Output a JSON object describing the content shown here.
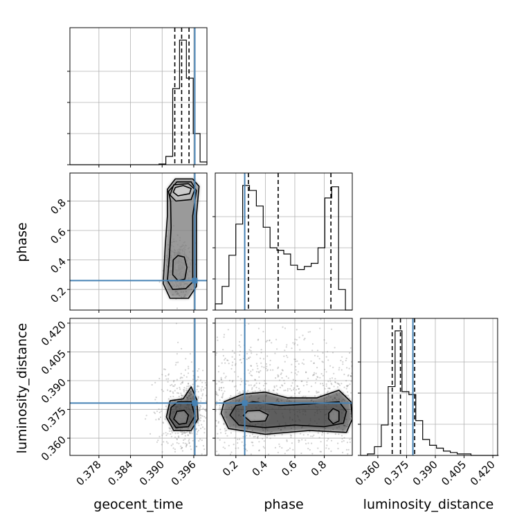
{
  "chart_data": {
    "type": "corner",
    "parameters": [
      "geocent_time",
      "phase",
      "luminosity_distance"
    ],
    "axis_labels": {
      "geocent_time": "geocent_time",
      "phase": "phase",
      "luminosity_distance": "luminosity_distance"
    },
    "ranges": {
      "geocent_time": [
        0.3725,
        0.3985
      ],
      "phase": [
        0.06,
        0.99
      ],
      "luminosity_distance": [
        0.351,
        0.4225
      ]
    },
    "ticks": {
      "geocent_time": [
        "0.378",
        "0.384",
        "0.390",
        "0.396"
      ],
      "phase": [
        "0.2",
        "0.4",
        "0.6",
        "0.8"
      ],
      "luminosity_distance": [
        "0.360",
        "0.375",
        "0.390",
        "0.405",
        "0.420"
      ]
    },
    "truths": {
      "geocent_time": 0.3962,
      "phase": 0.26,
      "luminosity_distance": 0.3783
    },
    "quantiles": {
      "geocent_time": [
        0.3924,
        0.3937,
        0.3951
      ],
      "phase": [
        0.285,
        0.487,
        0.845
      ],
      "luminosity_distance": [
        0.3675,
        0.3718,
        0.3792
      ]
    },
    "histograms": {
      "geocent_time": {
        "edges": [
          0.3725,
          0.3738,
          0.3751,
          0.3764,
          0.3777,
          0.379,
          0.3803,
          0.3816,
          0.3829,
          0.3842,
          0.3855,
          0.3868,
          0.3881,
          0.3894,
          0.3907,
          0.392,
          0.3933,
          0.3946,
          0.3959,
          0.3972,
          0.3985
        ],
        "counts": [
          0,
          0,
          0,
          0,
          0,
          0,
          0,
          0,
          0,
          0,
          0,
          0,
          0,
          1,
          12,
          110,
          180,
          125,
          45,
          4
        ]
      },
      "phase": {
        "edges": [
          0.06,
          0.1065,
          0.153,
          0.1995,
          0.246,
          0.2925,
          0.339,
          0.3855,
          0.432,
          0.4785,
          0.525,
          0.5715,
          0.618,
          0.6645,
          0.711,
          0.7575,
          0.804,
          0.8505,
          0.897,
          0.9435,
          0.99
        ],
        "counts": [
          10,
          38,
          88,
          138,
          200,
          192,
          167,
          133,
          100,
          96,
          90,
          72,
          65,
          70,
          75,
          100,
          180,
          198,
          33,
          0
        ]
      },
      "luminosity_distance": {
        "edges": [
          0.351,
          0.3546,
          0.3582,
          0.3618,
          0.3654,
          0.369,
          0.3726,
          0.3762,
          0.3798,
          0.3834,
          0.387,
          0.3906,
          0.3942,
          0.3978,
          0.4014,
          0.405,
          0.4086,
          0.4122,
          0.4158,
          0.4194,
          0.423
        ],
        "counts": [
          0,
          2,
          12,
          42,
          95,
          172,
          88,
          84,
          48,
          22,
          14,
          10,
          6,
          4,
          2,
          2,
          0,
          0,
          0,
          0
        ]
      }
    },
    "contours_2d": {
      "phase_vs_geocent_time": {
        "levels": [
          [
            [
              0.3921,
              0.86
            ],
            [
              0.393,
              0.835
            ],
            [
              0.3952,
              0.85
            ],
            [
              0.3955,
              0.885
            ],
            [
              0.394,
              0.905
            ],
            [
              0.3925,
              0.892
            ]
          ],
          [
            [
              0.3915,
              0.84
            ],
            [
              0.3926,
              0.8
            ],
            [
              0.3955,
              0.81
            ],
            [
              0.3962,
              0.88
            ],
            [
              0.395,
              0.918
            ],
            [
              0.3922,
              0.91
            ]
          ],
          [
            [
              0.3912,
              0.865
            ],
            [
              0.3916,
              0.8
            ],
            [
              0.3917,
              0.62
            ],
            [
              0.3914,
              0.43
            ],
            [
              0.391,
              0.26
            ],
            [
              0.392,
              0.2
            ],
            [
              0.3945,
              0.205
            ],
            [
              0.3958,
              0.25
            ],
            [
              0.3958,
              0.7
            ],
            [
              0.3965,
              0.87
            ],
            [
              0.3955,
              0.93
            ],
            [
              0.3928,
              0.93
            ]
          ],
          [
            [
              0.391,
              0.88
            ],
            [
              0.391,
              0.7
            ],
            [
              0.3906,
              0.5
            ],
            [
              0.3902,
              0.24
            ],
            [
              0.3915,
              0.14
            ],
            [
              0.395,
              0.14
            ],
            [
              0.3965,
              0.22
            ],
            [
              0.3965,
              0.7
            ],
            [
              0.397,
              0.9
            ],
            [
              0.3958,
              0.95
            ],
            [
              0.3925,
              0.95
            ]
          ],
          [
            [
              0.392,
              0.3
            ],
            [
              0.393,
              0.26
            ],
            [
              0.3943,
              0.27
            ],
            [
              0.3947,
              0.35
            ],
            [
              0.3942,
              0.42
            ],
            [
              0.393,
              0.43
            ],
            [
              0.3921,
              0.4
            ]
          ]
        ]
      },
      "luminosity_distance_vs_geocent_time": {
        "levels": [
          [
            [
              0.3922,
              0.37
            ],
            [
              0.3932,
              0.3672
            ],
            [
              0.3946,
              0.3678
            ],
            [
              0.395,
              0.372
            ],
            [
              0.3942,
              0.3745
            ],
            [
              0.3928,
              0.374
            ]
          ],
          [
            [
              0.3914,
              0.3705
            ],
            [
              0.3926,
              0.3655
            ],
            [
              0.395,
              0.366
            ],
            [
              0.3962,
              0.3715
            ],
            [
              0.3955,
              0.379
            ],
            [
              0.393,
              0.379
            ],
            [
              0.3917,
              0.376
            ]
          ],
          [
            [
              0.3908,
              0.371
            ],
            [
              0.3922,
              0.364
            ],
            [
              0.3955,
              0.364
            ],
            [
              0.3968,
              0.37
            ],
            [
              0.3966,
              0.38
            ],
            [
              0.3955,
              0.3868
            ],
            [
              0.394,
              0.3805
            ],
            [
              0.3915,
              0.3795
            ]
          ]
        ]
      },
      "luminosity_distance_vs_phase": {
        "levels": [
          [
            [
              0.25,
              0.3718
            ],
            [
              0.3,
              0.3685
            ],
            [
              0.4,
              0.369
            ],
            [
              0.42,
              0.3722
            ],
            [
              0.36,
              0.3745
            ],
            [
              0.28,
              0.3742
            ]
          ],
          [
            [
              0.83,
              0.37
            ],
            [
              0.86,
              0.3675
            ],
            [
              0.9,
              0.369
            ],
            [
              0.9,
              0.374
            ],
            [
              0.86,
              0.3755
            ],
            [
              0.83,
              0.373
            ]
          ],
          [
            [
              0.16,
              0.372
            ],
            [
              0.22,
              0.3668
            ],
            [
              0.4,
              0.3655
            ],
            [
              0.6,
              0.3668
            ],
            [
              0.8,
              0.366
            ],
            [
              0.93,
              0.3678
            ],
            [
              0.95,
              0.374
            ],
            [
              0.9,
              0.379
            ],
            [
              0.7,
              0.3778
            ],
            [
              0.5,
              0.377
            ],
            [
              0.32,
              0.379
            ],
            [
              0.2,
              0.377
            ]
          ],
          [
            [
              0.1,
              0.373
            ],
            [
              0.15,
              0.365
            ],
            [
              0.4,
              0.362
            ],
            [
              0.7,
              0.364
            ],
            [
              0.95,
              0.363
            ],
            [
              0.99,
              0.37
            ],
            [
              0.98,
              0.379
            ],
            [
              0.9,
              0.385
            ],
            [
              0.75,
              0.381
            ],
            [
              0.55,
              0.381
            ],
            [
              0.4,
              0.384
            ],
            [
              0.25,
              0.383
            ],
            [
              0.12,
              0.379
            ]
          ]
        ]
      }
    }
  }
}
